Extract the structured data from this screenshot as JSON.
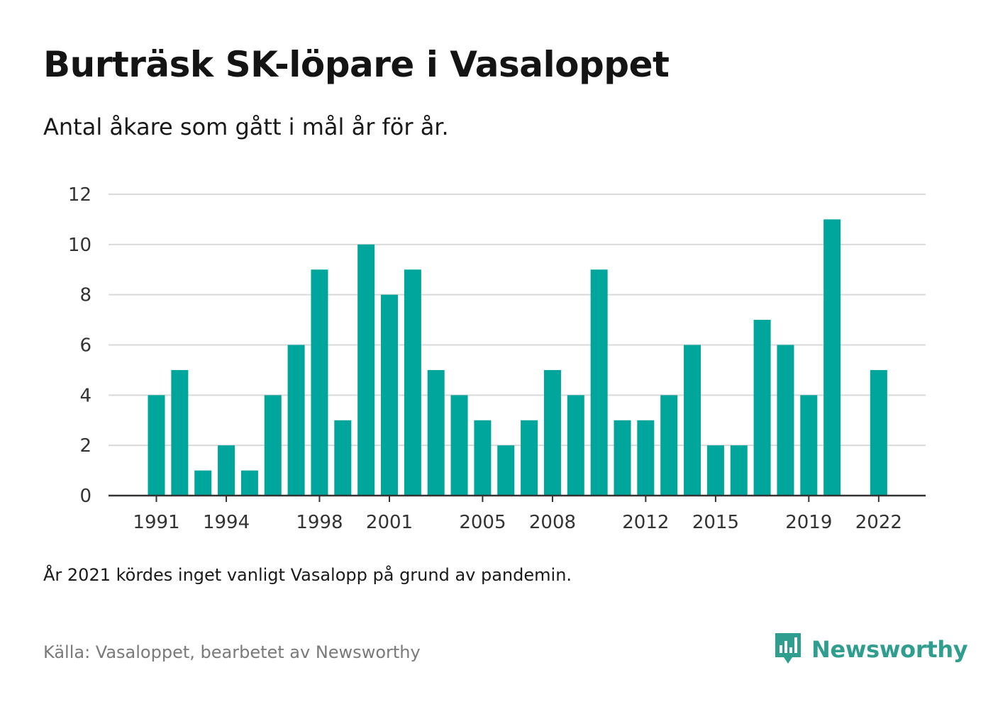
{
  "title": "Burträsk SK-löpare i Vasaloppet",
  "subtitle": "Antal åkare som gått i mål år för år.",
  "note": "År 2021 kördes inget vanligt Vasalopp på grund av pandemin.",
  "source": "Källa: Vasaloppet, bearbetet av Newsworthy",
  "brand": {
    "name": "Newsworthy",
    "icon": "newsworthy-logo-icon",
    "color": "#2f9e8f"
  },
  "colors": {
    "bar": "#00a59b",
    "grid": "#d9d9d9",
    "axis": "#333333"
  },
  "chart_data": {
    "type": "bar",
    "title": "Burträsk SK-löpare i Vasaloppet",
    "subtitle": "Antal åkare som gått i mål år för år.",
    "xlabel": "",
    "ylabel": "",
    "ylim": [
      0,
      12
    ],
    "yticks": [
      0,
      2,
      4,
      6,
      8,
      10,
      12
    ],
    "grid": true,
    "x_tick_labels": [
      1991,
      1994,
      1998,
      2001,
      2005,
      2008,
      2012,
      2015,
      2019,
      2022
    ],
    "x_range": [
      1991,
      2022
    ],
    "categories": [
      1991,
      1992,
      1993,
      1994,
      1995,
      1996,
      1997,
      1998,
      1999,
      2000,
      2001,
      2002,
      2003,
      2004,
      2005,
      2006,
      2007,
      2008,
      2009,
      2010,
      2011,
      2012,
      2013,
      2014,
      2015,
      2016,
      2017,
      2018,
      2019,
      2020,
      2021,
      2022
    ],
    "values": [
      4,
      5,
      1,
      2,
      1,
      4,
      6,
      9,
      3,
      10,
      8,
      9,
      5,
      4,
      3,
      2,
      3,
      5,
      4,
      9,
      3,
      3,
      4,
      6,
      2,
      2,
      7,
      6,
      4,
      11,
      null,
      5
    ]
  }
}
